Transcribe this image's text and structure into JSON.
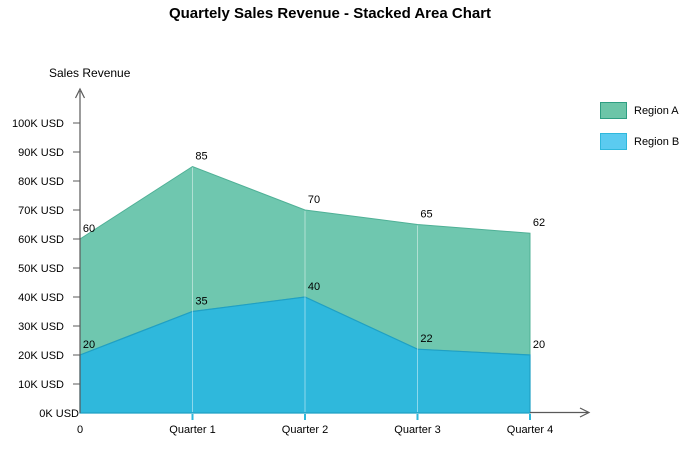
{
  "chart_data": {
    "type": "area",
    "stacked": true,
    "title": "Quartely Sales Revenue - Stacked Area Chart",
    "ylabel": "Sales Revenue",
    "xlabel": "",
    "categories": [
      "0",
      "Quarter 1",
      "Quarter 2",
      "Quarter 3",
      "Quarter 4"
    ],
    "series": [
      {
        "name": "Region A",
        "values": [
          40,
          50,
          30,
          43,
          42
        ],
        "stacked_totals": [
          60,
          85,
          70,
          65,
          62
        ],
        "data_labels": [
          "60",
          "85",
          "70",
          "65",
          "62"
        ],
        "fill": "#6FC7AF",
        "stroke": "#4FB096",
        "legend_swatch_fill": "#6CC5A8",
        "legend_swatch_border": "#2E9E82"
      },
      {
        "name": "Region B",
        "values": [
          20,
          35,
          40,
          22,
          20
        ],
        "data_labels": [
          "20",
          "35",
          "40",
          "22",
          "20"
        ],
        "fill": "#2FB8DC",
        "stroke": "#1FA0C4",
        "legend_swatch_fill": "#5BCBF0",
        "legend_swatch_border": "#2FB8DC"
      }
    ],
    "y_ticks": [
      {
        "value": 0,
        "label": "0K USD"
      },
      {
        "value": 10,
        "label": "10K USD"
      },
      {
        "value": 20,
        "label": "20K USD"
      },
      {
        "value": 30,
        "label": "30K USD"
      },
      {
        "value": 40,
        "label": "40K USD"
      },
      {
        "value": 50,
        "label": "50K USD"
      },
      {
        "value": 60,
        "label": "60K USD"
      },
      {
        "value": 70,
        "label": "70K USD"
      },
      {
        "value": 80,
        "label": "80K USD"
      },
      {
        "value": 90,
        "label": "90K USD"
      },
      {
        "value": 100,
        "label": "100K USD"
      }
    ],
    "y_axis_range": [
      0,
      110
    ],
    "legend_position": "right",
    "grid": false,
    "axis_color": "#595959",
    "label_color": "#000000",
    "segment_divider_color": "rgba(255,255,255,0.45)"
  }
}
